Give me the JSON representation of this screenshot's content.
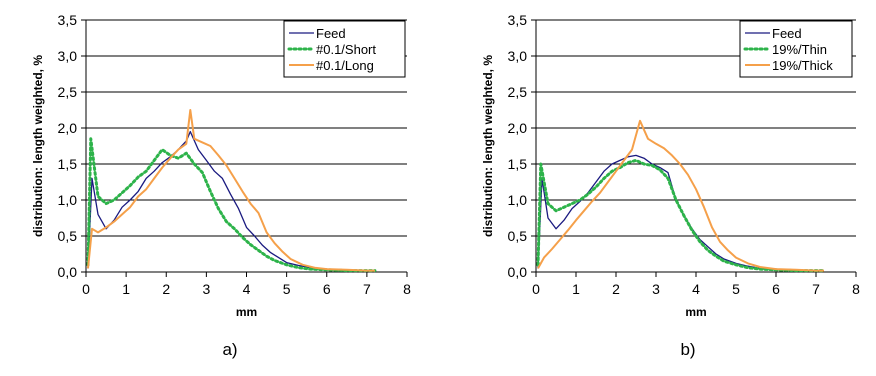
{
  "colors": {
    "feed": "#1a1a80",
    "short": "#2db34a",
    "long": "#f5a04a",
    "grid": "#000000"
  },
  "chart_data": [
    {
      "type": "line",
      "caption": "a)",
      "xlabel": "mm",
      "ylabel": "distribution: length weighted, %",
      "xlim": [
        0,
        8
      ],
      "ylim": [
        0,
        3.5
      ],
      "x_ticks": [
        "0",
        "1",
        "2",
        "3",
        "4",
        "5",
        "6",
        "7",
        "8"
      ],
      "y_ticks": [
        "0,0",
        "0,5",
        "1,0",
        "1,5",
        "2,0",
        "2,5",
        "3,0",
        "3,5"
      ],
      "grid": "horizontal",
      "legend_position": "top-right",
      "series": [
        {
          "name": "Feed",
          "color": "#1a1a80",
          "style": "solid",
          "x": [
            0.05,
            0.15,
            0.3,
            0.5,
            0.7,
            0.9,
            1.1,
            1.3,
            1.5,
            1.7,
            1.9,
            2.1,
            2.3,
            2.5,
            2.6,
            2.8,
            3.0,
            3.2,
            3.4,
            3.6,
            3.8,
            4.0,
            4.2,
            4.4,
            4.6,
            4.8,
            5.0,
            5.3,
            5.6,
            6.0,
            6.5,
            7.0,
            7.2
          ],
          "y": [
            0.05,
            1.3,
            0.8,
            0.6,
            0.72,
            0.9,
            1.0,
            1.12,
            1.3,
            1.4,
            1.52,
            1.6,
            1.7,
            1.82,
            1.95,
            1.7,
            1.55,
            1.4,
            1.3,
            1.08,
            0.88,
            0.62,
            0.5,
            0.37,
            0.27,
            0.2,
            0.13,
            0.09,
            0.06,
            0.04,
            0.03,
            0.02,
            0.02
          ]
        },
        {
          "name": "#0.1/Short",
          "color": "#2db34a",
          "style": "dotted",
          "x": [
            0.05,
            0.12,
            0.3,
            0.5,
            0.7,
            0.9,
            1.1,
            1.3,
            1.5,
            1.7,
            1.9,
            2.1,
            2.3,
            2.5,
            2.7,
            2.9,
            3.1,
            3.3,
            3.5,
            3.7,
            3.9,
            4.1,
            4.3,
            4.5,
            4.7,
            5.0,
            5.3,
            5.6,
            6.0,
            6.5,
            7.0,
            7.2
          ],
          "y": [
            0.1,
            1.85,
            1.05,
            0.95,
            1.0,
            1.1,
            1.2,
            1.32,
            1.4,
            1.55,
            1.7,
            1.62,
            1.58,
            1.65,
            1.5,
            1.38,
            1.12,
            0.88,
            0.7,
            0.6,
            0.48,
            0.38,
            0.3,
            0.22,
            0.16,
            0.1,
            0.06,
            0.04,
            0.03,
            0.02,
            0.02,
            0.02
          ]
        },
        {
          "name": "#0.1/Long",
          "color": "#f5a04a",
          "style": "solid",
          "x": [
            0.05,
            0.15,
            0.3,
            0.5,
            0.7,
            0.9,
            1.1,
            1.3,
            1.5,
            1.7,
            1.9,
            2.1,
            2.3,
            2.5,
            2.6,
            2.7,
            2.9,
            3.1,
            3.3,
            3.5,
            3.7,
            3.9,
            4.1,
            4.3,
            4.5,
            4.7,
            4.9,
            5.1,
            5.4,
            5.7,
            6.0,
            6.5,
            7.0,
            7.2
          ],
          "y": [
            0.05,
            0.6,
            0.55,
            0.62,
            0.7,
            0.8,
            0.9,
            1.05,
            1.15,
            1.3,
            1.45,
            1.58,
            1.7,
            1.78,
            2.25,
            1.85,
            1.8,
            1.75,
            1.62,
            1.48,
            1.3,
            1.12,
            0.95,
            0.82,
            0.55,
            0.4,
            0.28,
            0.18,
            0.1,
            0.06,
            0.04,
            0.03,
            0.02,
            0.02
          ]
        }
      ]
    },
    {
      "type": "line",
      "caption": "b)",
      "xlabel": "mm",
      "ylabel": "distribution: length weighted, %",
      "xlim": [
        0,
        8
      ],
      "ylim": [
        0,
        3.5
      ],
      "x_ticks": [
        "0",
        "1",
        "2",
        "3",
        "4",
        "5",
        "6",
        "7",
        "8"
      ],
      "y_ticks": [
        "0,0",
        "0,5",
        "1,0",
        "1,5",
        "2,0",
        "2,5",
        "3,0",
        "3,5"
      ],
      "grid": "horizontal",
      "legend_position": "top-right",
      "series": [
        {
          "name": "Feed",
          "color": "#1a1a80",
          "style": "solid",
          "x": [
            0.05,
            0.15,
            0.3,
            0.5,
            0.7,
            0.9,
            1.1,
            1.3,
            1.5,
            1.7,
            1.9,
            2.1,
            2.3,
            2.5,
            2.7,
            2.9,
            3.1,
            3.3,
            3.5,
            3.7,
            3.9,
            4.1,
            4.3,
            4.5,
            4.7,
            5.0,
            5.3,
            5.6,
            6.0,
            6.5,
            7.0,
            7.2
          ],
          "y": [
            0.05,
            1.3,
            0.75,
            0.6,
            0.72,
            0.88,
            0.98,
            1.1,
            1.25,
            1.4,
            1.5,
            1.55,
            1.6,
            1.62,
            1.58,
            1.5,
            1.45,
            1.38,
            1.0,
            0.78,
            0.6,
            0.45,
            0.35,
            0.25,
            0.18,
            0.12,
            0.08,
            0.05,
            0.04,
            0.03,
            0.02,
            0.02
          ]
        },
        {
          "name": "19%/Thin",
          "color": "#2db34a",
          "style": "dotted",
          "x": [
            0.05,
            0.12,
            0.3,
            0.5,
            0.7,
            0.9,
            1.1,
            1.3,
            1.5,
            1.7,
            1.9,
            2.1,
            2.3,
            2.5,
            2.7,
            2.9,
            3.1,
            3.3,
            3.5,
            3.7,
            3.9,
            4.1,
            4.3,
            4.5,
            4.7,
            5.0,
            5.3,
            5.6,
            6.0,
            6.5,
            7.0,
            7.2
          ],
          "y": [
            0.1,
            1.5,
            0.95,
            0.85,
            0.9,
            0.95,
            1.0,
            1.08,
            1.18,
            1.3,
            1.4,
            1.45,
            1.52,
            1.55,
            1.5,
            1.48,
            1.42,
            1.3,
            1.0,
            0.78,
            0.58,
            0.42,
            0.3,
            0.22,
            0.15,
            0.1,
            0.06,
            0.04,
            0.03,
            0.02,
            0.02,
            0.02
          ]
        },
        {
          "name": "19%/Thick",
          "color": "#f5a04a",
          "style": "solid",
          "x": [
            0.05,
            0.2,
            0.4,
            0.6,
            0.8,
            1.0,
            1.2,
            1.4,
            1.6,
            1.8,
            2.0,
            2.2,
            2.4,
            2.6,
            2.8,
            3.0,
            3.2,
            3.4,
            3.6,
            3.8,
            4.0,
            4.2,
            4.4,
            4.6,
            4.8,
            5.0,
            5.3,
            5.6,
            6.0,
            6.5,
            7.0,
            7.2
          ],
          "y": [
            0.05,
            0.2,
            0.32,
            0.45,
            0.58,
            0.72,
            0.85,
            0.98,
            1.1,
            1.25,
            1.4,
            1.55,
            1.7,
            2.1,
            1.85,
            1.78,
            1.72,
            1.62,
            1.5,
            1.35,
            1.15,
            0.9,
            0.62,
            0.42,
            0.3,
            0.2,
            0.12,
            0.07,
            0.04,
            0.03,
            0.02,
            0.02
          ]
        }
      ]
    }
  ]
}
